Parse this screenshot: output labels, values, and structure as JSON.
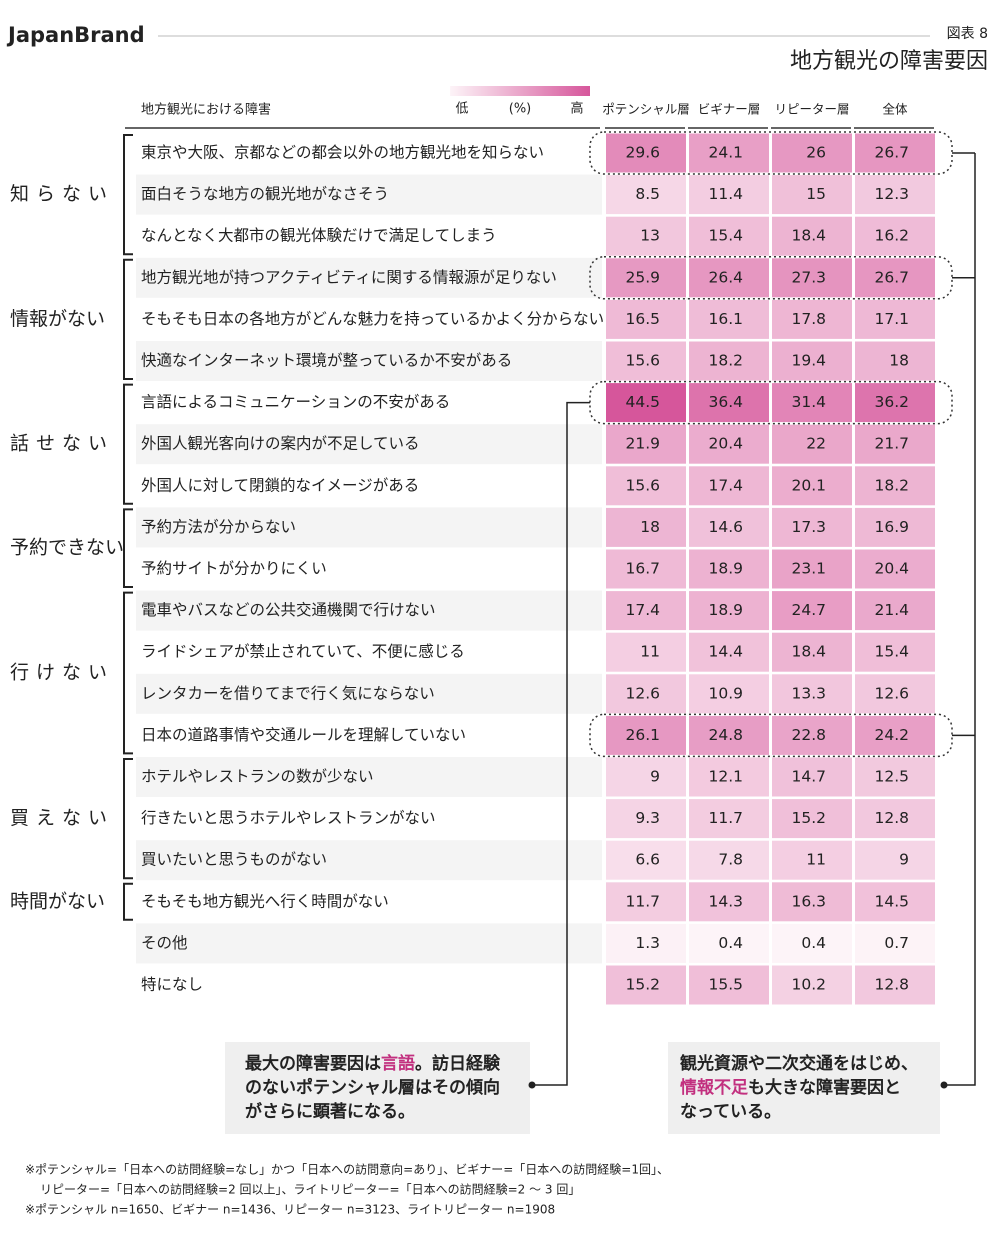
{
  "brand": "JapanBrand",
  "figure_label": "図表 8",
  "chart_data": {
    "type": "heatmap",
    "title": "地方観光の障害要因",
    "row_header": "地方観光における障害",
    "legend": {
      "low": "低",
      "unit": "(%)",
      "high": "高"
    },
    "color_low": "#fdf4f8",
    "color_high": "#d6569b",
    "highlight_color": "#c2307f",
    "categories": [
      "東京や大阪、京都などの都会以外の地方観光地を知らない",
      "面白そうな地方の観光地がなさそう",
      "なんとなく大都市の観光体験だけで満足してしまう",
      "地方観光地が持つアクティビティに関する情報源が足りない",
      "そもそも日本の各地方がどんな魅力を持っているかよく分からない",
      "快適なインターネット環境が整っているか不安がある",
      "言語によるコミュニケーションの不安がある",
      "外国人観光客向けの案内が不足している",
      "外国人に対して閉鎖的なイメージがある",
      "予約方法が分からない",
      "予約サイトが分かりにくい",
      "電車やバスなどの公共交通機関で行けない",
      "ライドシェアが禁止されていて、不便に感じる",
      "レンタカーを借りてまで行く気にならない",
      "日本の道路事情や交通ルールを理解していない",
      "ホテルやレストランの数が少ない",
      "行きたいと思うホテルやレストランがない",
      "買いたいと思うものがない",
      "そもそも地方観光へ行く時間がない",
      "その他",
      "特になし"
    ],
    "highlighted": [
      0,
      3,
      6,
      14
    ],
    "groups": [
      {
        "label": "知らない",
        "rows": [
          0,
          2
        ]
      },
      {
        "label": "情報がない",
        "rows": [
          3,
          5
        ]
      },
      {
        "label": "話せない",
        "rows": [
          6,
          8
        ]
      },
      {
        "label": "予約できない",
        "rows": [
          9,
          10
        ]
      },
      {
        "label": "行けない",
        "rows": [
          11,
          14
        ]
      },
      {
        "label": "買えない",
        "rows": [
          15,
          17
        ]
      },
      {
        "label": "時間がない",
        "rows": [
          18,
          18
        ]
      }
    ],
    "series": [
      {
        "name": "ポテンシャル層",
        "values": [
          29.6,
          8.5,
          13.0,
          25.9,
          16.5,
          15.6,
          44.5,
          21.9,
          15.6,
          18.0,
          16.7,
          17.4,
          11.0,
          12.6,
          26.1,
          9.0,
          9.3,
          6.6,
          11.7,
          1.3,
          15.2
        ]
      },
      {
        "name": "ビギナー層",
        "values": [
          24.1,
          11.4,
          15.4,
          26.4,
          16.1,
          18.2,
          36.4,
          20.4,
          17.4,
          14.6,
          18.9,
          18.9,
          14.4,
          10.9,
          24.8,
          12.1,
          11.7,
          7.8,
          14.3,
          0.4,
          15.5
        ]
      },
      {
        "name": "リピーター層",
        "values": [
          26.0,
          15.0,
          18.4,
          27.3,
          17.8,
          19.4,
          31.4,
          22.0,
          20.1,
          17.3,
          23.1,
          24.7,
          18.4,
          13.3,
          22.8,
          14.7,
          15.2,
          11.0,
          16.3,
          0.4,
          10.2
        ]
      },
      {
        "name": "全体",
        "values": [
          26.7,
          12.3,
          16.2,
          26.7,
          17.1,
          18.0,
          36.2,
          21.7,
          18.2,
          16.9,
          20.4,
          21.4,
          15.4,
          12.6,
          24.2,
          12.5,
          12.8,
          9.0,
          14.5,
          0.7,
          12.8
        ]
      }
    ],
    "callouts": [
      {
        "row": 6,
        "lines": [
          [
            {
              "text": "最大の障害要因は"
            },
            {
              "text": "言語",
              "highlight": true
            },
            {
              "text": "。訪日経験"
            }
          ],
          [
            {
              "text": "のないポテンシャル層はその傾向"
            }
          ],
          [
            {
              "text": "がさらに顕著になる。"
            }
          ]
        ]
      },
      {
        "rows": [
          0,
          3,
          14
        ],
        "lines": [
          [
            {
              "text": "観光資源や二次交通をはじめ、"
            }
          ],
          [
            {
              "text": "情報不足",
              "highlight": true
            },
            {
              "text": "も大きな障害要因と"
            }
          ],
          [
            {
              "text": "なっている。"
            }
          ]
        ]
      }
    ]
  },
  "footnotes": [
    "※ポテンシャル=「日本への訪問経験=なし」かつ「日本への訪問意向=あり」、ビギナー=「日本への訪問経験=1回」、",
    "リピーター=「日本への訪問経験=2 回以上」、ライトリピーター=「日本への訪問経験=2 ～ 3 回」",
    "※ポテンシャル n=1650、ビギナー n=1436、リピーター n=3123、ライトリピーター n=1908"
  ]
}
